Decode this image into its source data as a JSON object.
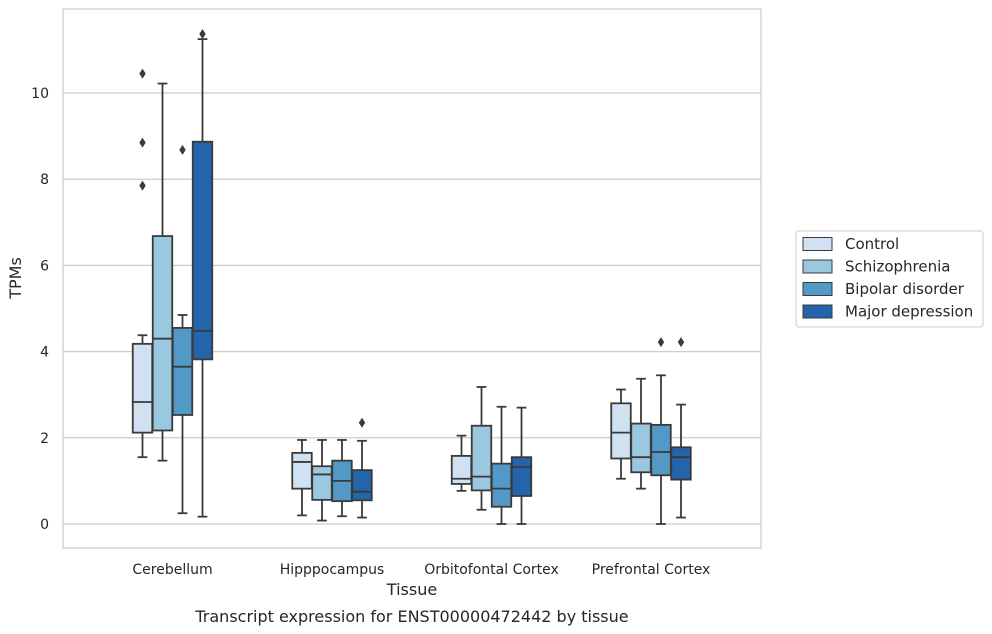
{
  "chart_data": {
    "type": "boxplot",
    "title": "Transcript expression for ENST00000472442 by tissue",
    "xlabel": "Tissue",
    "ylabel": "TPMs",
    "ylim": [
      -0.5,
      11.9
    ],
    "yticks": [
      0,
      2,
      4,
      6,
      8,
      10
    ],
    "grid": "horizontal",
    "legend_position": "right",
    "categories": [
      "Cerebellum",
      "Hipppocampus",
      "Orbitofontal Cortex",
      "Prefrontal Cortex"
    ],
    "series": [
      {
        "name": "Control",
        "color": "#d0e1f2",
        "boxes": [
          {
            "min": 1.55,
            "q1": 2.12,
            "median": 2.83,
            "q3": 4.18,
            "max": 4.38,
            "outliers": [
              7.85,
              8.85,
              10.45
            ]
          },
          {
            "min": 0.2,
            "q1": 0.82,
            "median": 1.44,
            "q3": 1.65,
            "max": 1.95,
            "outliers": []
          },
          {
            "min": 0.77,
            "q1": 0.93,
            "median": 1.05,
            "q3": 1.58,
            "max": 2.05,
            "outliers": []
          },
          {
            "min": 1.05,
            "q1": 1.52,
            "median": 2.12,
            "q3": 2.8,
            "max": 3.12,
            "outliers": []
          }
        ]
      },
      {
        "name": "Schizophrenia",
        "color": "#9ac8e0",
        "boxes": [
          {
            "min": 1.47,
            "q1": 2.17,
            "median": 4.3,
            "q3": 6.68,
            "max": 10.22,
            "outliers": []
          },
          {
            "min": 0.08,
            "q1": 0.56,
            "median": 1.15,
            "q3": 1.34,
            "max": 1.95,
            "outliers": []
          },
          {
            "min": 0.33,
            "q1": 0.78,
            "median": 1.1,
            "q3": 2.28,
            "max": 3.18,
            "outliers": []
          },
          {
            "min": 0.82,
            "q1": 1.2,
            "median": 1.55,
            "q3": 2.33,
            "max": 3.37,
            "outliers": []
          }
        ]
      },
      {
        "name": "Bipolar disorder",
        "color": "#5299c8",
        "boxes": [
          {
            "min": 0.25,
            "q1": 2.53,
            "median": 3.65,
            "q3": 4.55,
            "max": 4.85,
            "outliers": [
              8.68
            ]
          },
          {
            "min": 0.18,
            "q1": 0.53,
            "median": 1.0,
            "q3": 1.47,
            "max": 1.95,
            "outliers": []
          },
          {
            "min": 0.0,
            "q1": 0.4,
            "median": 0.82,
            "q3": 1.4,
            "max": 2.72,
            "outliers": []
          },
          {
            "min": 0.0,
            "q1": 1.13,
            "median": 1.67,
            "q3": 2.3,
            "max": 3.45,
            "outliers": [
              4.22
            ]
          }
        ]
      },
      {
        "name": "Major depression",
        "color": "#2364aa",
        "boxes": [
          {
            "min": 0.17,
            "q1": 3.82,
            "median": 4.48,
            "q3": 8.87,
            "max": 11.25,
            "outliers": [
              11.37
            ]
          },
          {
            "min": 0.15,
            "q1": 0.55,
            "median": 0.75,
            "q3": 1.25,
            "max": 1.93,
            "outliers": [
              2.35
            ]
          },
          {
            "min": 0.0,
            "q1": 0.65,
            "median": 1.32,
            "q3": 1.55,
            "max": 2.7,
            "outliers": []
          },
          {
            "min": 0.15,
            "q1": 1.03,
            "median": 1.55,
            "q3": 1.78,
            "max": 2.77,
            "outliers": [
              4.22
            ]
          }
        ]
      }
    ]
  }
}
